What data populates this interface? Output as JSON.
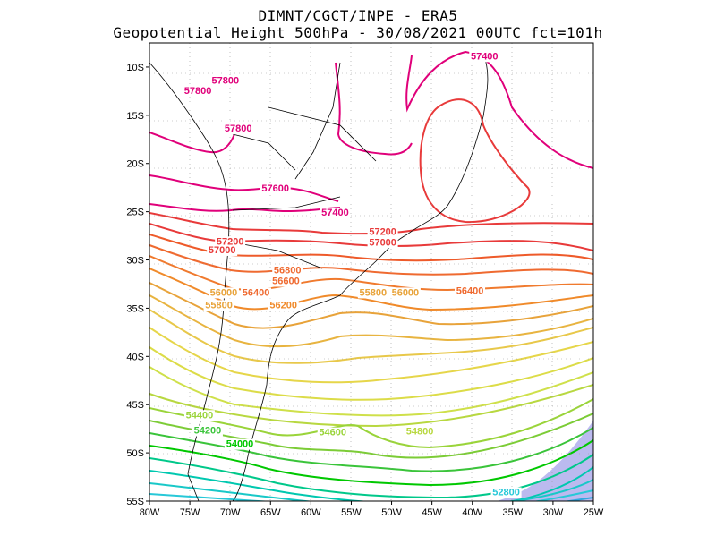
{
  "header": {
    "line1": "DIMNT/CGCT/INPE -  ERA5",
    "line2": "Geopotential Height 500hPa -  30/08/2021 00UTC fct=101h"
  },
  "axes": {
    "lon_ticks": [
      "80W",
      "75W",
      "70W",
      "65W",
      "60W",
      "55W",
      "50W",
      "45W",
      "40W",
      "35W",
      "30W",
      "25W"
    ],
    "lat_ticks": [
      "10S",
      "15S",
      "20S",
      "25S",
      "30S",
      "35S",
      "40S",
      "45S",
      "50S",
      "55S"
    ],
    "lon_range": [
      -80,
      -25
    ],
    "lat_range": [
      -55,
      -7.5
    ]
  },
  "contour_labels": [
    {
      "text": "57400",
      "lon": -38.5,
      "lat": -9.2,
      "color": "#e0007a"
    },
    {
      "text": "57800",
      "lon": -70.6,
      "lat": -11.7,
      "color": "#e0007a"
    },
    {
      "text": "57800",
      "lon": -74.0,
      "lat": -12.8,
      "color": "#e0007a"
    },
    {
      "text": "57800",
      "lon": -69.0,
      "lat": -16.7,
      "color": "#e0007a"
    },
    {
      "text": "57600",
      "lon": -64.4,
      "lat": -22.9,
      "color": "#e0007a"
    },
    {
      "text": "57400",
      "lon": -57.0,
      "lat": -25.4,
      "color": "#e0007a"
    },
    {
      "text": "57200",
      "lon": -51.1,
      "lat": -27.4,
      "color": "#e83a3a"
    },
    {
      "text": "57000",
      "lon": -51.1,
      "lat": -28.5,
      "color": "#e83a3a"
    },
    {
      "text": "57200",
      "lon": -70.0,
      "lat": -28.4,
      "color": "#e83a3a"
    },
    {
      "text": "57000",
      "lon": -71.0,
      "lat": -29.3,
      "color": "#e83a3a"
    },
    {
      "text": "56800",
      "lon": -62.9,
      "lat": -31.4,
      "color": "#ef6a30"
    },
    {
      "text": "56600",
      "lon": -63.1,
      "lat": -32.5,
      "color": "#ef6a30"
    },
    {
      "text": "56400",
      "lon": -66.8,
      "lat": -33.7,
      "color": "#ef6a30"
    },
    {
      "text": "56400",
      "lon": -40.3,
      "lat": -33.5,
      "color": "#ef6a30"
    },
    {
      "text": "56200",
      "lon": -63.4,
      "lat": -35.0,
      "color": "#f08a2a"
    },
    {
      "text": "56000",
      "lon": -70.8,
      "lat": -33.7,
      "color": "#e8a33a"
    },
    {
      "text": "55800",
      "lon": -71.4,
      "lat": -35.0,
      "color": "#e8a33a"
    },
    {
      "text": "55800",
      "lon": -52.3,
      "lat": -33.7,
      "color": "#e8a33a"
    },
    {
      "text": "56000",
      "lon": -48.3,
      "lat": -33.7,
      "color": "#e8a33a"
    },
    {
      "text": "54400",
      "lon": -73.8,
      "lat": -46.4,
      "color": "#9ad43a"
    },
    {
      "text": "54600",
      "lon": -57.3,
      "lat": -48.2,
      "color": "#9ad43a"
    },
    {
      "text": "54800",
      "lon": -46.5,
      "lat": -48.1,
      "color": "#b8d840"
    },
    {
      "text": "54200",
      "lon": -72.8,
      "lat": -48.0,
      "color": "#3ac43a"
    },
    {
      "text": "54000",
      "lon": -68.8,
      "lat": -49.4,
      "color": "#00c800"
    },
    {
      "text": "52800",
      "lon": -35.8,
      "lat": -54.4,
      "color": "#27c8d8"
    }
  ]
}
